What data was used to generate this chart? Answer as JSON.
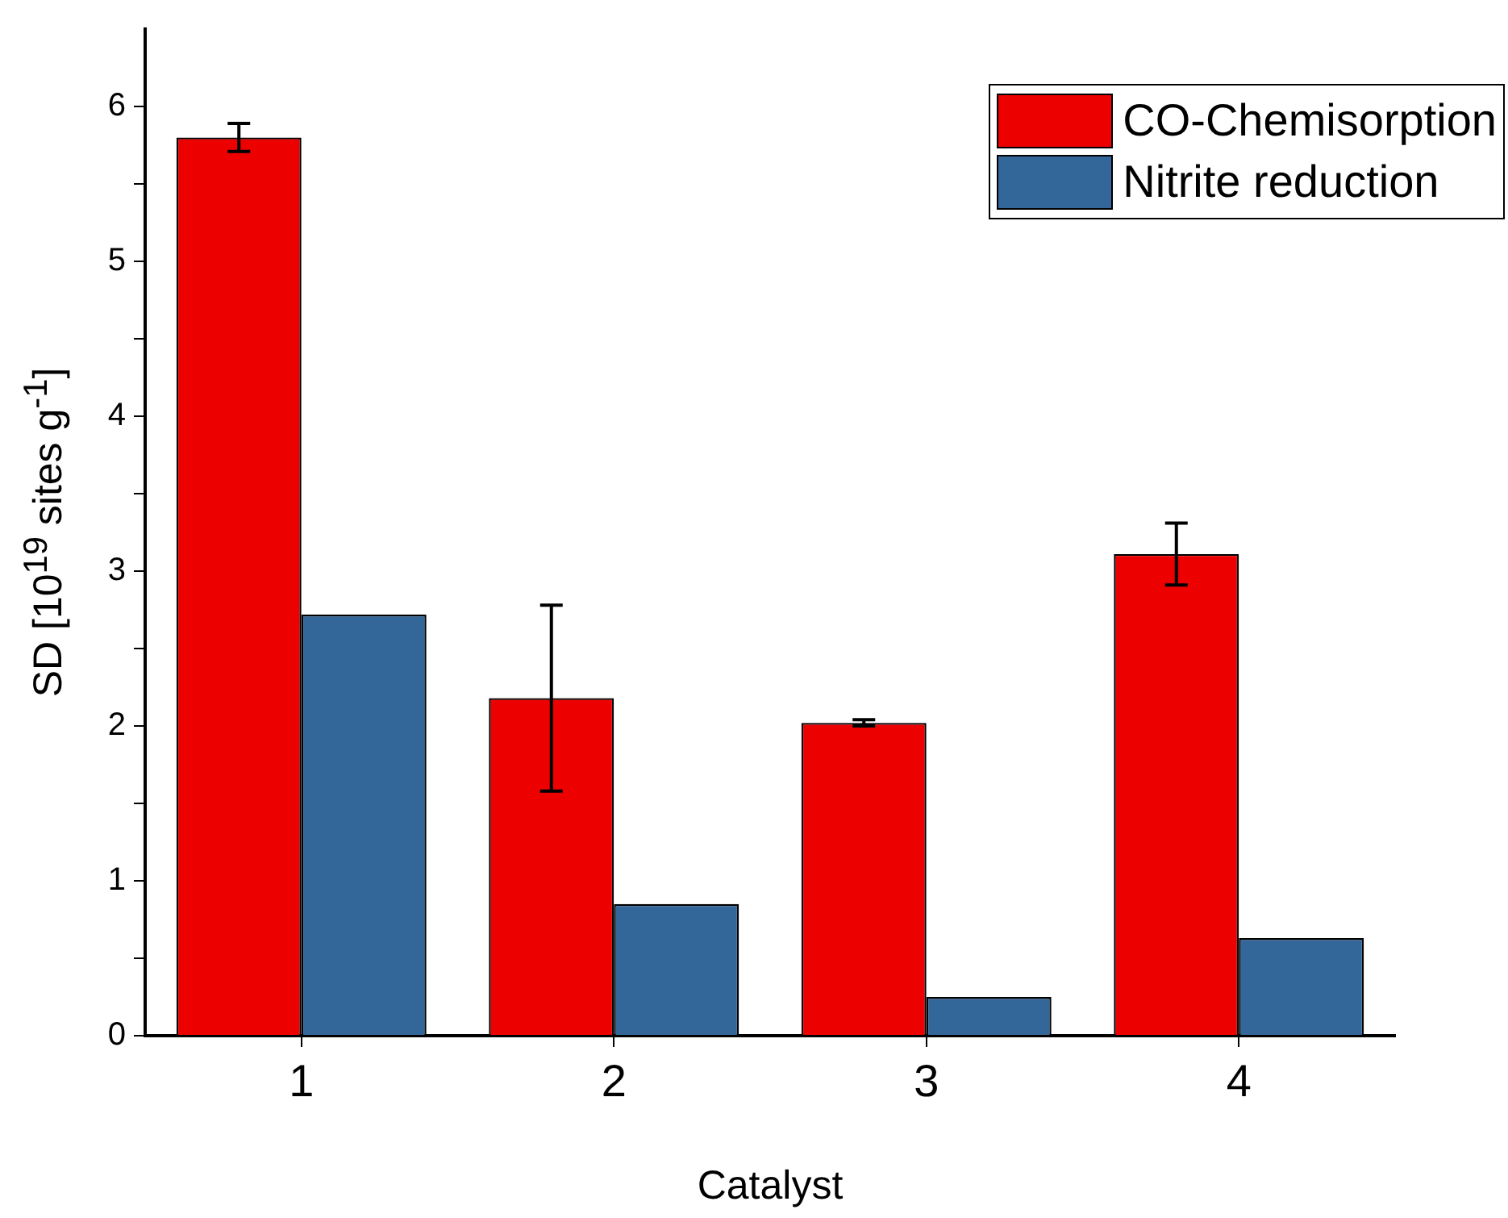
{
  "chart_data": {
    "type": "bar",
    "xlabel": "Catalyst",
    "ylabel": "SD [10$^{19}$ sites g$^{-1}$]",
    "categories": [
      "1",
      "2",
      "3",
      "4"
    ],
    "series": [
      {
        "name": "CO-Chemisorption",
        "color": "#ec0000",
        "values": [
          5.8,
          2.18,
          2.02,
          3.11
        ],
        "errors": [
          0.09,
          0.6,
          0.02,
          0.2
        ]
      },
      {
        "name": "Nitrite reduction",
        "color": "#336699",
        "values": [
          2.72,
          0.85,
          0.25,
          0.63
        ]
      }
    ],
    "ylim": [
      0,
      6.5
    ],
    "yticks": [
      0,
      {
        "value": 0.5,
        "label": null
      },
      1,
      {
        "value": 1.5,
        "label": null
      },
      2,
      {
        "value": 2.5,
        "label": null
      },
      3,
      {
        "value": 3.5,
        "label": null
      },
      4,
      {
        "value": 4.5,
        "label": null
      },
      5,
      {
        "value": 5.5,
        "label": null
      },
      6
    ],
    "grid": false,
    "legend": "top right"
  }
}
